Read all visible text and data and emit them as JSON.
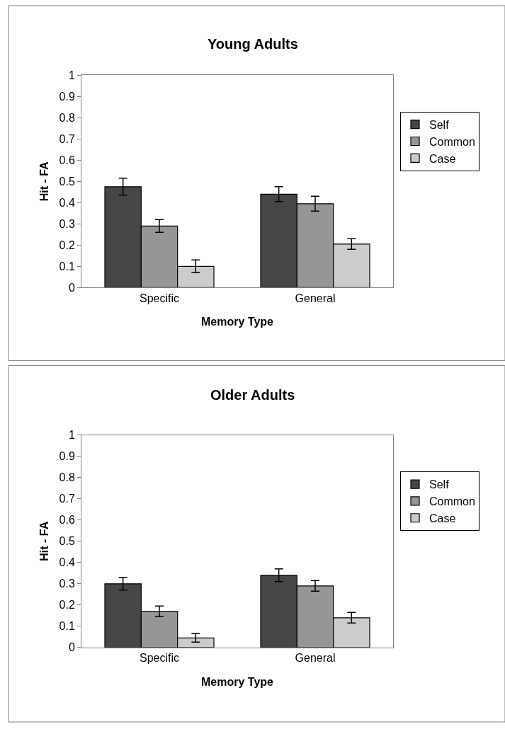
{
  "chart_data": [
    {
      "type": "bar",
      "title": "Young Adults",
      "xlabel": "Memory Type",
      "ylabel": "Hit - FA",
      "categories": [
        "Specific",
        "General"
      ],
      "series": [
        {
          "name": "Self",
          "color": "#464646",
          "values": [
            0.475,
            0.44
          ],
          "errors": [
            0.04,
            0.035
          ]
        },
        {
          "name": "Common",
          "color": "#969696",
          "values": [
            0.29,
            0.395
          ],
          "errors": [
            0.03,
            0.035
          ]
        },
        {
          "name": "Case",
          "color": "#cccccc",
          "values": [
            0.1,
            0.205
          ],
          "errors": [
            0.03,
            0.025
          ]
        }
      ],
      "ylim": [
        0,
        1
      ],
      "yticks": [
        0,
        0.1,
        0.2,
        0.3,
        0.4,
        0.5,
        0.6,
        0.7,
        0.8,
        0.9,
        1
      ],
      "legend": "right"
    },
    {
      "type": "bar",
      "title": "Older Adults",
      "xlabel": "Memory Type",
      "ylabel": "Hit - FA",
      "categories": [
        "Specific",
        "General"
      ],
      "series": [
        {
          "name": "Self",
          "color": "#464646",
          "values": [
            0.3,
            0.34
          ],
          "errors": [
            0.03,
            0.03
          ]
        },
        {
          "name": "Common",
          "color": "#969696",
          "values": [
            0.17,
            0.29
          ],
          "errors": [
            0.025,
            0.025
          ]
        },
        {
          "name": "Case",
          "color": "#cccccc",
          "values": [
            0.045,
            0.14
          ],
          "errors": [
            0.02,
            0.025
          ]
        }
      ],
      "ylim": [
        0,
        1
      ],
      "yticks": [
        0,
        0.1,
        0.2,
        0.3,
        0.4,
        0.5,
        0.6,
        0.7,
        0.8,
        0.9,
        1
      ],
      "legend": "right"
    }
  ]
}
